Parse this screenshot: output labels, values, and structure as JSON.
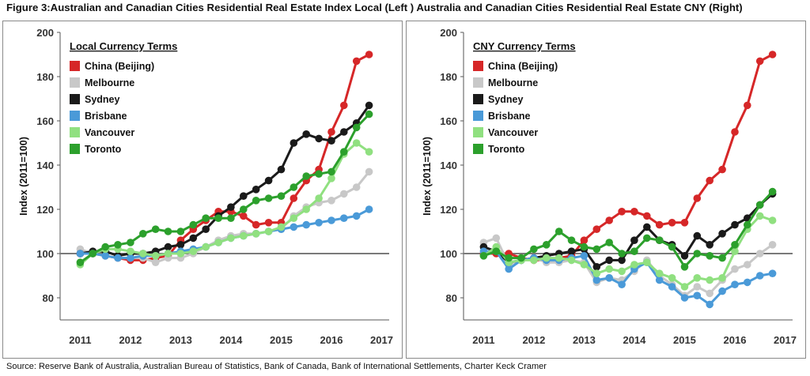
{
  "title": "Figure 3:Australian and Canadian Cities Residential Real Estate Index Local (Left ) Australia and Canadian Cities Residential Real Estate CNY (Right)",
  "source": "Source: Reserve Bank of Australia, Australian Bureau of Statistics, Bank of Canada, Bank of International Settlements, Charter Keck Cramer",
  "chart_data": [
    {
      "type": "line",
      "legend_title": "Local Currency Terms",
      "legend_position": "top-left",
      "ylabel": "Index (2011=100)",
      "xlabel": "",
      "ylim": [
        70,
        200
      ],
      "yticks": [
        80,
        100,
        120,
        140,
        160,
        180,
        200
      ],
      "xlim": [
        2010.6,
        2017.15
      ],
      "xticks": [
        "2011",
        "2012",
        "2013",
        "2014",
        "2015",
        "2016",
        "2017"
      ],
      "reference_line": 100,
      "grid": false,
      "series": [
        {
          "name": "China (Beijing)",
          "color": "#d62728",
          "x": [
            2011.0,
            2011.25,
            2011.5,
            2011.75,
            2012.0,
            2012.25,
            2012.5,
            2012.75,
            2013.0,
            2013.25,
            2013.5,
            2013.75,
            2014.0,
            2014.25,
            2014.5,
            2014.75,
            2015.0,
            2015.25,
            2015.5,
            2015.75,
            2016.0,
            2016.25,
            2016.5,
            2016.75
          ],
          "y": [
            100,
            100,
            99,
            98,
            97,
            97,
            98,
            99,
            106,
            111,
            115,
            119,
            119,
            117,
            113,
            114,
            114,
            125,
            133,
            138,
            155,
            167,
            187,
            190
          ]
        },
        {
          "name": "Melbourne",
          "color": "#c8c8c8",
          "x": [
            2011.0,
            2011.25,
            2011.5,
            2011.75,
            2012.0,
            2012.25,
            2012.5,
            2012.75,
            2013.0,
            2013.25,
            2013.5,
            2013.75,
            2014.0,
            2014.25,
            2014.5,
            2014.75,
            2015.0,
            2015.25,
            2015.5,
            2015.75,
            2016.0,
            2016.25,
            2016.5,
            2016.75
          ],
          "y": [
            102,
            100,
            99,
            98,
            98,
            98,
            96,
            98,
            98,
            100,
            103,
            106,
            108,
            109,
            109,
            110,
            111,
            117,
            121,
            123,
            124,
            127,
            130,
            137
          ]
        },
        {
          "name": "Sydney",
          "color": "#1a1a1a",
          "x": [
            2011.0,
            2011.25,
            2011.5,
            2011.75,
            2012.0,
            2012.25,
            2012.5,
            2012.75,
            2013.0,
            2013.25,
            2013.5,
            2013.75,
            2014.0,
            2014.25,
            2014.5,
            2014.75,
            2015.0,
            2015.25,
            2015.5,
            2015.75,
            2016.0,
            2016.25,
            2016.5,
            2016.75
          ],
          "y": [
            100,
            101,
            101,
            99,
            100,
            100,
            101,
            103,
            104,
            107,
            111,
            117,
            121,
            126,
            129,
            133,
            138,
            150,
            154,
            152,
            151,
            155,
            159,
            167
          ]
        },
        {
          "name": "Brisbane",
          "color": "#4a9ad8",
          "x": [
            2011.0,
            2011.25,
            2011.5,
            2011.75,
            2012.0,
            2012.25,
            2012.5,
            2012.75,
            2013.0,
            2013.25,
            2013.5,
            2013.75,
            2014.0,
            2014.25,
            2014.5,
            2014.75,
            2015.0,
            2015.25,
            2015.5,
            2015.75,
            2016.0,
            2016.25,
            2016.5,
            2016.75
          ],
          "y": [
            100,
            100,
            99,
            98,
            98,
            99,
            99,
            100,
            101,
            102,
            103,
            105,
            107,
            108,
            109,
            110,
            111,
            112,
            113,
            114,
            115,
            116,
            117,
            120
          ]
        },
        {
          "name": "Vancouver",
          "color": "#90e080",
          "x": [
            2011.0,
            2011.25,
            2011.5,
            2011.75,
            2012.0,
            2012.25,
            2012.5,
            2012.75,
            2013.0,
            2013.25,
            2013.5,
            2013.75,
            2014.0,
            2014.25,
            2014.5,
            2014.75,
            2015.0,
            2015.25,
            2015.5,
            2015.75,
            2016.0,
            2016.25,
            2016.5,
            2016.75
          ],
          "y": [
            95,
            100,
            102,
            102,
            101,
            100,
            99,
            100,
            100,
            101,
            103,
            105,
            107,
            108,
            109,
            110,
            112,
            116,
            120,
            125,
            134,
            145,
            150,
            146
          ]
        },
        {
          "name": "Toronto",
          "color": "#2ca02c",
          "x": [
            2011.0,
            2011.25,
            2011.5,
            2011.75,
            2012.0,
            2012.25,
            2012.5,
            2012.75,
            2013.0,
            2013.25,
            2013.5,
            2013.75,
            2014.0,
            2014.25,
            2014.5,
            2014.75,
            2015.0,
            2015.25,
            2015.5,
            2015.75,
            2016.0,
            2016.25,
            2016.5,
            2016.75
          ],
          "y": [
            96,
            100,
            103,
            104,
            105,
            109,
            111,
            110,
            110,
            113,
            116,
            116,
            116,
            120,
            124,
            125,
            126,
            130,
            135,
            136,
            137,
            146,
            157,
            163
          ]
        }
      ]
    },
    {
      "type": "line",
      "legend_title": "CNY Currency Terms",
      "legend_position": "top-left",
      "ylabel": "Index (2011=100)",
      "xlabel": "",
      "ylim": [
        70,
        200
      ],
      "yticks": [
        80,
        100,
        120,
        140,
        160,
        180,
        200
      ],
      "xlim": [
        2010.6,
        2017.15
      ],
      "xticks": [
        "2011",
        "2012",
        "2013",
        "2014",
        "2015",
        "2016",
        "2017"
      ],
      "reference_line": 100,
      "grid": false,
      "series": [
        {
          "name": "China (Beijing)",
          "color": "#d62728",
          "x": [
            2011.0,
            2011.25,
            2011.5,
            2011.75,
            2012.0,
            2012.25,
            2012.5,
            2012.75,
            2013.0,
            2013.25,
            2013.5,
            2013.75,
            2014.0,
            2014.25,
            2014.5,
            2014.75,
            2015.0,
            2015.25,
            2015.5,
            2015.75,
            2016.0,
            2016.25,
            2016.5,
            2016.75
          ],
          "y": [
            100,
            100,
            100,
            98,
            97,
            97,
            98,
            99,
            106,
            111,
            115,
            119,
            119,
            117,
            113,
            114,
            114,
            125,
            133,
            138,
            155,
            167,
            187,
            190
          ]
        },
        {
          "name": "Melbourne",
          "color": "#c8c8c8",
          "x": [
            2011.0,
            2011.25,
            2011.5,
            2011.75,
            2012.0,
            2012.25,
            2012.5,
            2012.75,
            2013.0,
            2013.25,
            2013.5,
            2013.75,
            2014.0,
            2014.25,
            2014.5,
            2014.75,
            2015.0,
            2015.25,
            2015.5,
            2015.75,
            2016.0,
            2016.25,
            2016.5,
            2016.75
          ],
          "y": [
            105,
            107,
            95,
            97,
            98,
            96,
            96,
            97,
            96,
            87,
            89,
            88,
            92,
            97,
            90,
            86,
            81,
            85,
            82,
            88,
            93,
            95,
            100,
            104
          ]
        },
        {
          "name": "Sydney",
          "color": "#1a1a1a",
          "x": [
            2011.0,
            2011.25,
            2011.5,
            2011.75,
            2012.0,
            2012.25,
            2012.5,
            2012.75,
            2013.0,
            2013.25,
            2013.5,
            2013.75,
            2014.0,
            2014.25,
            2014.5,
            2014.75,
            2015.0,
            2015.25,
            2015.5,
            2015.75,
            2016.0,
            2016.25,
            2016.5,
            2016.75
          ],
          "y": [
            103,
            101,
            96,
            97,
            98,
            99,
            100,
            101,
            102,
            94,
            97,
            97,
            106,
            112,
            106,
            104,
            99,
            108,
            104,
            109,
            113,
            116,
            122,
            127
          ]
        },
        {
          "name": "Brisbane",
          "color": "#4a9ad8",
          "x": [
            2011.0,
            2011.25,
            2011.5,
            2011.75,
            2012.0,
            2012.25,
            2012.5,
            2012.75,
            2013.0,
            2013.25,
            2013.5,
            2013.75,
            2014.0,
            2014.25,
            2014.5,
            2014.75,
            2015.0,
            2015.25,
            2015.5,
            2015.75,
            2016.0,
            2016.25,
            2016.5,
            2016.75
          ],
          "y": [
            101,
            101,
            93,
            97,
            98,
            97,
            97,
            98,
            99,
            88,
            89,
            86,
            93,
            96,
            88,
            85,
            80,
            81,
            77,
            83,
            86,
            87,
            90,
            91
          ]
        },
        {
          "name": "Vancouver",
          "color": "#90e080",
          "x": [
            2011.0,
            2011.25,
            2011.5,
            2011.75,
            2012.0,
            2012.25,
            2012.5,
            2012.75,
            2013.0,
            2013.25,
            2013.5,
            2013.75,
            2014.0,
            2014.25,
            2014.5,
            2014.75,
            2015.0,
            2015.25,
            2015.5,
            2015.75,
            2016.0,
            2016.25,
            2016.5,
            2016.75
          ],
          "y": [
            99,
            103,
            96,
            97,
            97,
            98,
            98,
            97,
            95,
            91,
            93,
            92,
            95,
            96,
            91,
            89,
            85,
            89,
            88,
            89,
            101,
            111,
            117,
            115
          ]
        },
        {
          "name": "Toronto",
          "color": "#2ca02c",
          "x": [
            2011.0,
            2011.25,
            2011.5,
            2011.75,
            2012.0,
            2012.25,
            2012.5,
            2012.75,
            2013.0,
            2013.25,
            2013.5,
            2013.75,
            2014.0,
            2014.25,
            2014.5,
            2014.75,
            2015.0,
            2015.25,
            2015.5,
            2015.75,
            2016.0,
            2016.25,
            2016.5,
            2016.75
          ],
          "y": [
            99,
            101,
            98,
            98,
            102,
            104,
            110,
            106,
            103,
            102,
            105,
            100,
            101,
            107,
            106,
            103,
            94,
            100,
            99,
            98,
            104,
            113,
            122,
            128
          ]
        }
      ]
    }
  ]
}
